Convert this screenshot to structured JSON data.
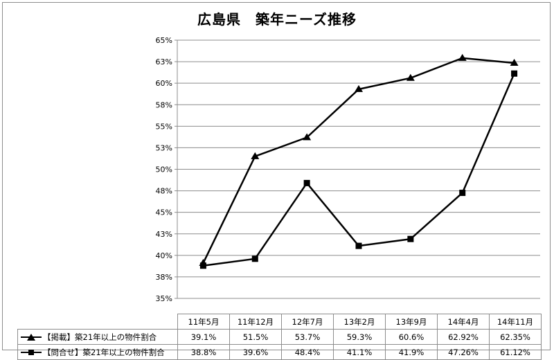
{
  "chart_data": {
    "type": "line",
    "title": "広島県　築年ニーズ推移",
    "categories": [
      "11年5月",
      "11年12月",
      "12年7月",
      "13年2月",
      "13年9月",
      "14年4月",
      "14年11月"
    ],
    "y_tick_labels": [
      "35%",
      "38%",
      "40%",
      "43%",
      "45%",
      "48%",
      "50%",
      "53%",
      "55%",
      "58%",
      "60%",
      "63%",
      "65%"
    ],
    "ylim": [
      35,
      65
    ],
    "grid": true,
    "series": [
      {
        "name": "【掲載】築21年以上の物件割合",
        "marker": "triangle",
        "values": [
          39.1,
          51.5,
          53.7,
          59.3,
          60.6,
          62.92,
          62.35
        ],
        "labels": [
          "39.1%",
          "51.5%",
          "53.7%",
          "59.3%",
          "60.6%",
          "62.92%",
          "62.35%"
        ]
      },
      {
        "name": "【問合せ】築21年以上の物件割合",
        "marker": "square",
        "values": [
          38.8,
          39.6,
          48.4,
          41.1,
          41.9,
          47.26,
          61.12
        ],
        "labels": [
          "38.8%",
          "39.6%",
          "48.4%",
          "41.1%",
          "41.9%",
          "47.26%",
          "61.12%"
        ]
      }
    ],
    "line_color": "#000000",
    "grid_color": "#8c8c8c"
  }
}
